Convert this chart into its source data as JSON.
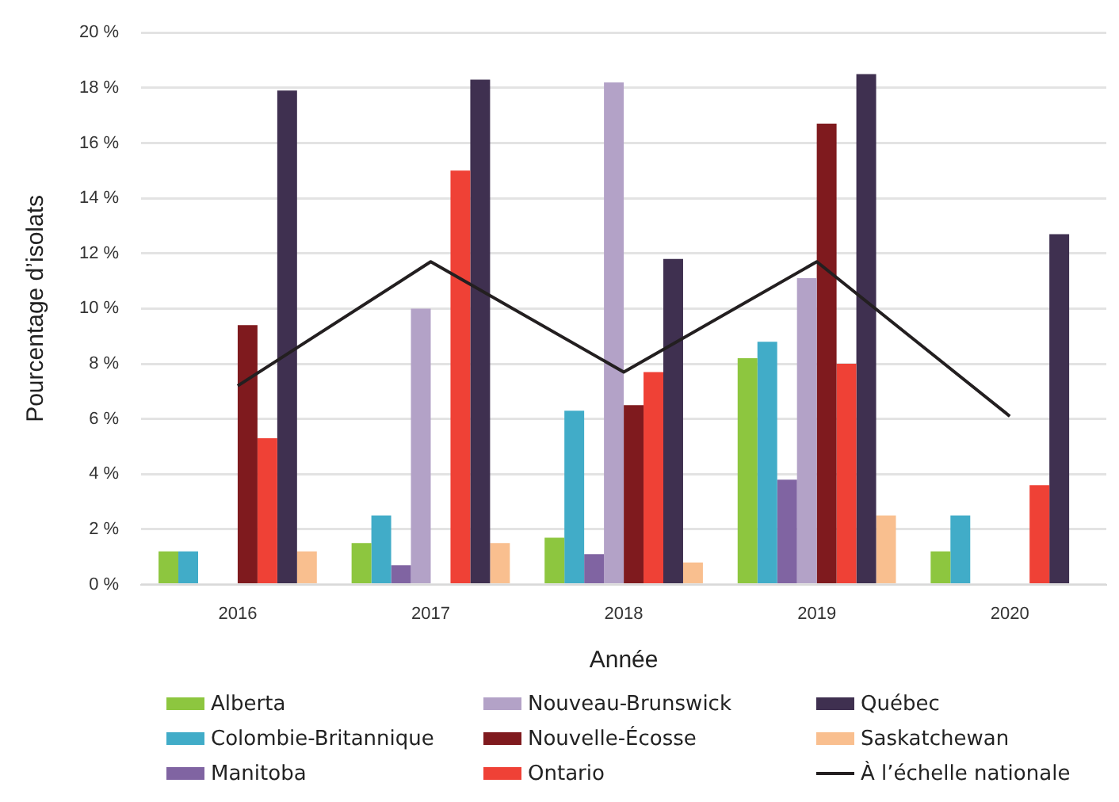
{
  "chart_data": {
    "type": "bar",
    "xlabel": "Année",
    "ylabel": "Pourcentage d’isolats",
    "categories": [
      "2016",
      "2017",
      "2018",
      "2019",
      "2020"
    ],
    "series": [
      {
        "name": "Alberta",
        "color": "#8dc63f",
        "values": [
          1.2,
          1.5,
          1.7,
          8.2,
          1.2
        ]
      },
      {
        "name": "Colombie-Britannique",
        "color": "#41acc8",
        "values": [
          1.2,
          2.5,
          6.3,
          8.8,
          2.5
        ]
      },
      {
        "name": "Manitoba",
        "color": "#8064a2",
        "values": [
          null,
          0.7,
          1.1,
          3.8,
          null
        ]
      },
      {
        "name": "Nouveau-Brunswick",
        "color": "#b3a2c7",
        "values": [
          null,
          10.0,
          18.2,
          11.1,
          null
        ]
      },
      {
        "name": "Nouvelle-Écosse",
        "color": "#7f1a1e",
        "values": [
          9.4,
          null,
          6.5,
          16.7,
          null
        ]
      },
      {
        "name": "Ontario",
        "color": "#ef4136",
        "values": [
          5.3,
          15.0,
          7.7,
          8.0,
          3.6
        ]
      },
      {
        "name": "Québec",
        "color": "#3f3050",
        "values": [
          17.9,
          18.3,
          11.8,
          18.5,
          12.7
        ]
      },
      {
        "name": "Saskatchewan",
        "color": "#f9bf8f",
        "values": [
          1.2,
          1.5,
          0.8,
          2.5,
          null
        ]
      },
      {
        "name": "À l’échelle nationale",
        "type": "line",
        "color": "#231f20",
        "values": [
          7.2,
          11.7,
          7.7,
          11.7,
          6.1
        ]
      }
    ],
    "ylim": [
      0,
      20
    ],
    "yticks": [
      {
        "value": 0,
        "label": "0 %"
      },
      {
        "value": 2,
        "label": "2 %"
      },
      {
        "value": 4,
        "label": "4 %"
      },
      {
        "value": 6,
        "label": "6 %"
      },
      {
        "value": 8,
        "label": "8 %"
      },
      {
        "value": 10,
        "label": "10 %"
      },
      {
        "value": 12,
        "label": "12 %"
      },
      {
        "value": 14,
        "label": "14 %"
      },
      {
        "value": 16,
        "label": "16 %"
      },
      {
        "value": 18,
        "label": "18 %"
      },
      {
        "value": 20,
        "label": "20 %"
      }
    ],
    "grid": "y",
    "legend": "bottom",
    "marker": "none"
  }
}
